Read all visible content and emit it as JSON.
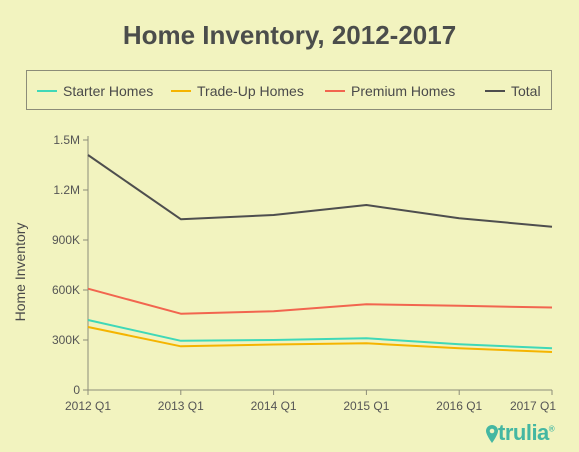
{
  "chart_data": {
    "type": "line",
    "title": "Home Inventory, 2012-2017",
    "ylabel": "Home Inventory",
    "xlabel": "",
    "x": [
      "2012 Q1",
      "2013 Q1",
      "2014 Q1",
      "2015 Q1",
      "2016 Q1",
      "2017 Q1"
    ],
    "ylim": [
      0,
      1500000
    ],
    "yticks": [
      0,
      300000,
      600000,
      900000,
      1200000,
      1500000
    ],
    "ytick_labels": [
      "0",
      "300K",
      "600K",
      "900K",
      "1.2M",
      "1.5M"
    ],
    "grid": false,
    "legend_position": "top",
    "series": [
      {
        "name": "Starter Homes",
        "color": "#3fd8b8",
        "values": [
          420000,
          295000,
          300000,
          310000,
          275000,
          250000
        ]
      },
      {
        "name": "Trade-Up Homes",
        "color": "#f5b400",
        "values": [
          378000,
          262000,
          273000,
          280000,
          250000,
          228000
        ]
      },
      {
        "name": "Premium Homes",
        "color": "#f2654f",
        "values": [
          608000,
          458000,
          473000,
          515000,
          505000,
          495000
        ]
      },
      {
        "name": "Total",
        "color": "#4e4e4e",
        "values": [
          1410000,
          1025000,
          1050000,
          1110000,
          1030000,
          980000
        ]
      }
    ]
  },
  "brand": {
    "name": "trulia",
    "mark": "®",
    "color": "#44b7a2"
  }
}
